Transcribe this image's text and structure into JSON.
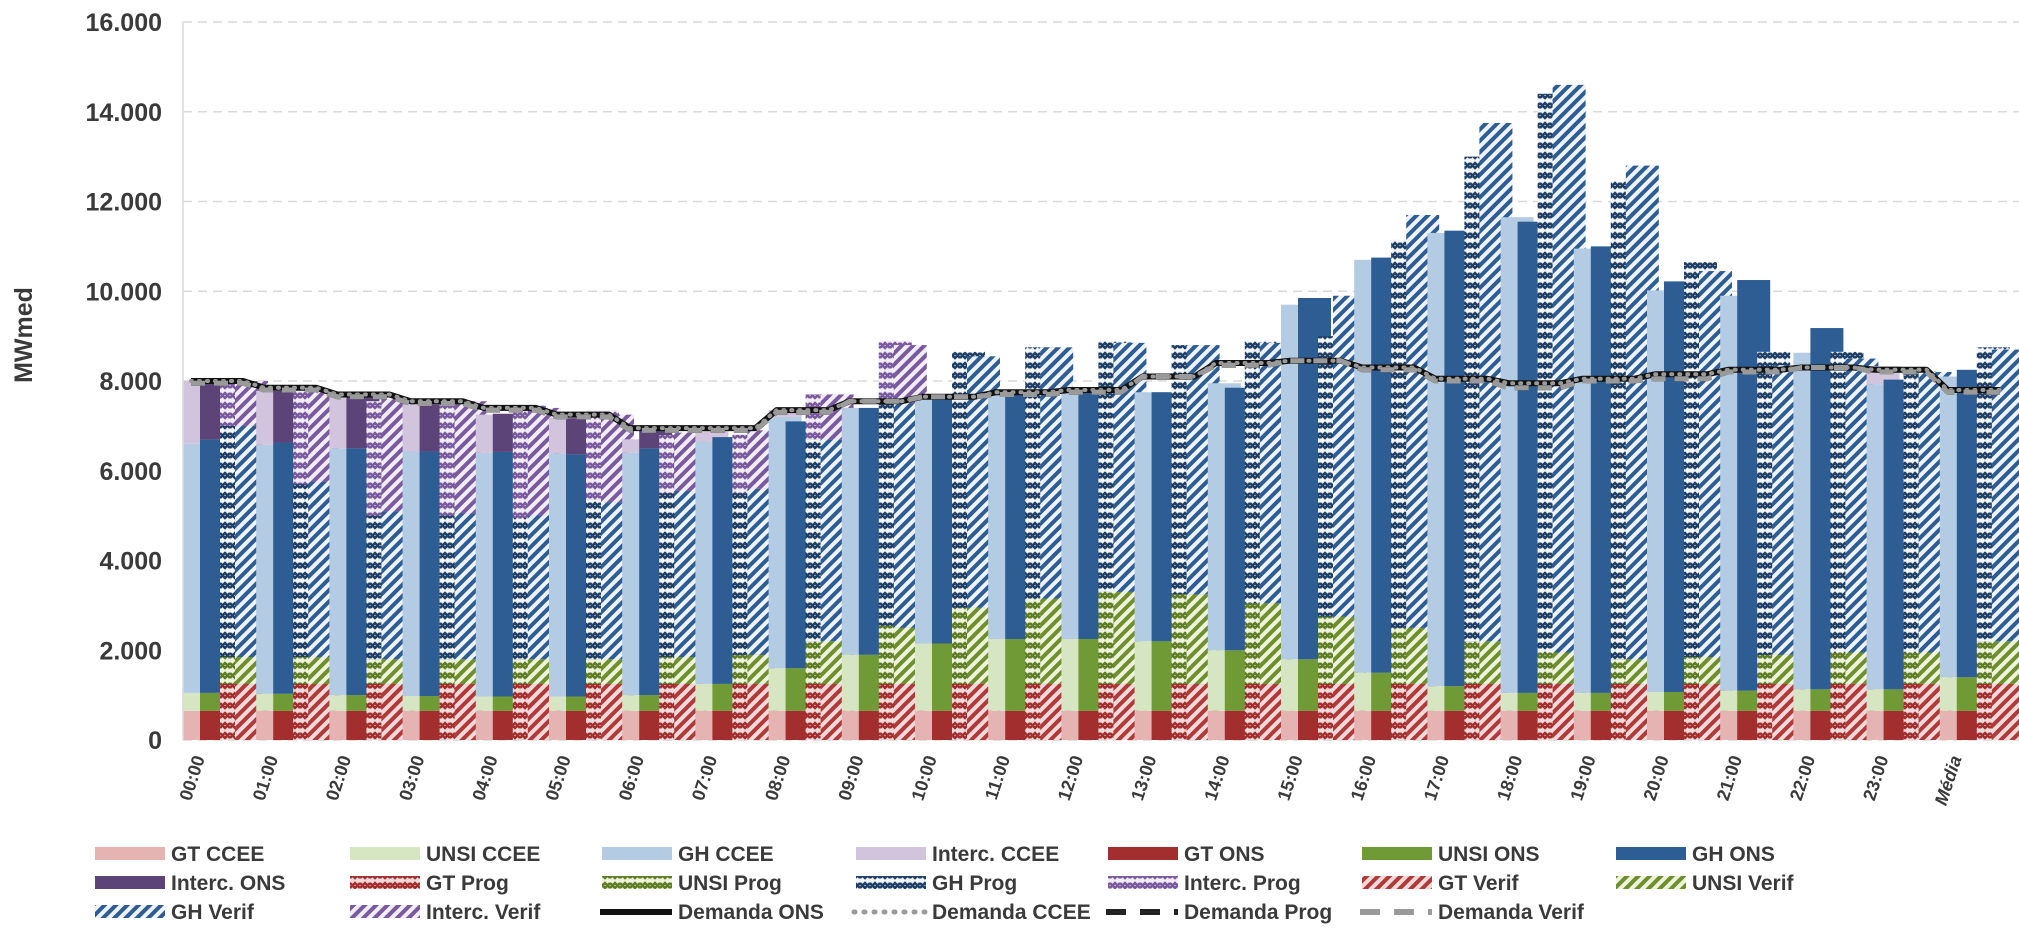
{
  "chart_data": {
    "type": "bar",
    "ylabel": "MWmed",
    "xlabel": "",
    "ylim": [
      0,
      16000
    ],
    "yticks": [
      "0",
      "2.000",
      "4.000",
      "6.000",
      "8.000",
      "10.000",
      "12.000",
      "14.000",
      "16.000"
    ],
    "grid": "horizontal dashed",
    "legend_position": "bottom",
    "categories": [
      "00:00",
      "01:00",
      "02:00",
      "03:00",
      "04:00",
      "05:00",
      "06:00",
      "07:00",
      "08:00",
      "09:00",
      "10:00",
      "11:00",
      "12:00",
      "13:00",
      "14:00",
      "15:00",
      "16:00",
      "17:00",
      "18:00",
      "19:00",
      "20:00",
      "21:00",
      "22:00",
      "23:00",
      "Média"
    ],
    "bar_groups": [
      {
        "name": "CCEE",
        "stack": [
          "GT CCEE",
          "UNSI CCEE",
          "GH CCEE",
          "Interc. CCEE"
        ]
      },
      {
        "name": "ONS",
        "stack": [
          "GT ONS",
          "UNSI ONS",
          "GH ONS",
          "Interc. ONS"
        ]
      },
      {
        "name": "Prog",
        "stack": [
          "GT Prog",
          "UNSI Prog",
          "GH Prog",
          "Interc. Prog"
        ]
      },
      {
        "name": "Verif",
        "stack": [
          "GT Verif",
          "UNSI Verif",
          "GH Verif",
          "Interc. Verif"
        ]
      }
    ],
    "series": [
      {
        "name": "GT CCEE",
        "values": [
          650,
          650,
          650,
          650,
          650,
          650,
          650,
          650,
          650,
          650,
          650,
          650,
          650,
          650,
          650,
          650,
          650,
          650,
          650,
          650,
          650,
          650,
          650,
          650,
          650
        ]
      },
      {
        "name": "UNSI CCEE",
        "values": [
          400,
          380,
          350,
          330,
          320,
          320,
          350,
          600,
          950,
          1250,
          1500,
          1600,
          1600,
          1550,
          1350,
          1150,
          850,
          550,
          400,
          400,
          420,
          450,
          480,
          480,
          750
        ]
      },
      {
        "name": "GH CCEE",
        "values": [
          5550,
          5550,
          5500,
          5450,
          5430,
          5420,
          5400,
          5400,
          5600,
          5500,
          5500,
          5450,
          5500,
          5550,
          5950,
          7900,
          9200,
          10100,
          10600,
          9900,
          8950,
          8800,
          7500,
          6800,
          6700
        ]
      },
      {
        "name": "Interc. CCEE",
        "values": [
          1400,
          1200,
          1150,
          1050,
          850,
          800,
          300,
          300,
          150,
          0,
          0,
          0,
          0,
          0,
          0,
          0,
          0,
          0,
          0,
          0,
          0,
          0,
          0,
          400,
          0
        ]
      },
      {
        "name": "GT ONS",
        "values": [
          650,
          650,
          650,
          650,
          650,
          650,
          650,
          650,
          650,
          650,
          650,
          650,
          650,
          650,
          650,
          650,
          650,
          650,
          650,
          650,
          650,
          650,
          650,
          650,
          650
        ]
      },
      {
        "name": "UNSI ONS",
        "values": [
          400,
          380,
          350,
          330,
          320,
          320,
          350,
          600,
          950,
          1250,
          1500,
          1600,
          1600,
          1550,
          1350,
          1150,
          850,
          550,
          400,
          400,
          420,
          450,
          480,
          480,
          750
        ]
      },
      {
        "name": "GH ONS",
        "values": [
          5650,
          5600,
          5500,
          5450,
          5450,
          5400,
          5500,
          5500,
          5500,
          5500,
          5500,
          5450,
          5500,
          5550,
          5850,
          8050,
          9250,
          10150,
          10500,
          9950,
          9150,
          9150,
          8050,
          6900,
          6850
        ]
      },
      {
        "name": "Interc. ONS",
        "values": [
          1300,
          1150,
          1150,
          1050,
          850,
          800,
          400,
          0,
          0,
          0,
          0,
          0,
          0,
          0,
          0,
          0,
          0,
          0,
          0,
          0,
          0,
          0,
          0,
          0,
          0
        ]
      },
      {
        "name": "GT Prog",
        "values": [
          1250,
          1250,
          1250,
          1250,
          1250,
          1250,
          1250,
          1250,
          1250,
          1250,
          1250,
          1250,
          1250,
          1250,
          1250,
          1250,
          1250,
          1250,
          1250,
          1250,
          1250,
          1250,
          1250,
          1250,
          1250
        ]
      },
      {
        "name": "UNSI Prog",
        "values": [
          600,
          600,
          550,
          550,
          550,
          550,
          600,
          650,
          950,
          1300,
          1700,
          1900,
          2050,
          2000,
          1800,
          1500,
          1250,
          950,
          700,
          550,
          600,
          650,
          700,
          700,
          950
        ]
      },
      {
        "name": "GH Prog",
        "values": [
          5150,
          3850,
          3200,
          3200,
          3150,
          3550,
          3650,
          3600,
          4500,
          5050,
          5700,
          5600,
          5600,
          5550,
          5850,
          6250,
          8650,
          10800,
          12450,
          10650,
          8800,
          6750,
          6700,
          6300,
          6550
        ]
      },
      {
        "name": "Interc. Prog",
        "values": [
          1000,
          2100,
          2550,
          2550,
          2500,
          2000,
          1300,
          1300,
          1000,
          1300,
          0,
          0,
          0,
          0,
          0,
          0,
          0,
          0,
          0,
          0,
          0,
          0,
          0,
          0,
          0
        ]
      },
      {
        "name": "GT Verif",
        "values": [
          1250,
          1250,
          1250,
          1250,
          1250,
          1250,
          1250,
          1250,
          1250,
          1250,
          1250,
          1250,
          1250,
          1250,
          1250,
          1250,
          1250,
          1250,
          1250,
          1250,
          1250,
          1250,
          1250,
          1250,
          1250
        ]
      },
      {
        "name": "UNSI Verif",
        "values": [
          600,
          600,
          550,
          550,
          550,
          550,
          600,
          650,
          950,
          1250,
          1700,
          1900,
          2050,
          2000,
          1800,
          1500,
          1250,
          950,
          700,
          550,
          600,
          650,
          700,
          700,
          950
        ]
      },
      {
        "name": "GH Verif",
        "values": [
          5150,
          3900,
          3300,
          3250,
          3200,
          3500,
          3700,
          3700,
          4500,
          5000,
          5600,
          5600,
          5550,
          5550,
          5800,
          7150,
          9200,
          11550,
          12650,
          11000,
          8600,
          6450,
          6550,
          6250,
          6500
        ]
      },
      {
        "name": "Interc. Verif",
        "values": [
          1000,
          2000,
          2500,
          2500,
          2400,
          1950,
          1300,
          1300,
          1000,
          1300,
          0,
          0,
          0,
          0,
          0,
          0,
          0,
          0,
          0,
          0,
          0,
          0,
          0,
          0,
          0
        ]
      }
    ],
    "lines": [
      {
        "name": "Demanda ONS",
        "style": "solid",
        "values": [
          8000,
          7850,
          7700,
          7550,
          7400,
          7250,
          6950,
          6950,
          7350,
          7550,
          7650,
          7750,
          7800,
          8100,
          8400,
          8450,
          8300,
          8050,
          7950,
          8050,
          8150,
          8250,
          8300,
          8250,
          7800
        ]
      },
      {
        "name": "Demanda CCEE",
        "style": "dotted",
        "values": [
          8000,
          7850,
          7700,
          7550,
          7400,
          7250,
          6950,
          6950,
          7350,
          7550,
          7650,
          7750,
          7800,
          8100,
          8400,
          8450,
          8300,
          8050,
          7950,
          8050,
          8150,
          8250,
          8300,
          8250,
          7800
        ]
      },
      {
        "name": "Demanda Prog",
        "style": "dash",
        "values": [
          7950,
          7800,
          7650,
          7500,
          7350,
          7200,
          6900,
          6900,
          7300,
          7550,
          7650,
          7700,
          7750,
          8100,
          8350,
          8450,
          8250,
          8000,
          7850,
          8000,
          8050,
          8200,
          8300,
          8200,
          7750
        ]
      },
      {
        "name": "Demanda Verif",
        "style": "dash-grey",
        "values": [
          7950,
          7800,
          7650,
          7500,
          7350,
          7200,
          6900,
          6900,
          7300,
          7550,
          7650,
          7700,
          7750,
          8100,
          8350,
          8450,
          8250,
          8000,
          7850,
          8000,
          8050,
          8200,
          8300,
          8200,
          7750
        ]
      }
    ],
    "legend": [
      {
        "label": "GT CCEE",
        "swatch": "bar",
        "color": "#e6b3b3",
        "pattern": "solid"
      },
      {
        "label": "UNSI CCEE",
        "swatch": "bar",
        "color": "#d6e6c3",
        "pattern": "solid"
      },
      {
        "label": "GH CCEE",
        "swatch": "bar",
        "color": "#b4cbe4",
        "pattern": "solid"
      },
      {
        "label": "Interc. CCEE",
        "swatch": "bar",
        "color": "#d2c4dd",
        "pattern": "solid"
      },
      {
        "label": "GT ONS",
        "swatch": "bar",
        "color": "#a32e2e",
        "pattern": "solid"
      },
      {
        "label": "UNSI ONS",
        "swatch": "bar",
        "color": "#6f9a36",
        "pattern": "solid"
      },
      {
        "label": "GH ONS",
        "swatch": "bar",
        "color": "#2e5d94",
        "pattern": "solid"
      },
      {
        "label": "Interc. ONS",
        "swatch": "bar",
        "color": "#5c4378",
        "pattern": "solid"
      },
      {
        "label": "GT Prog",
        "swatch": "bar",
        "color": "#b03a3a",
        "pattern": "hatch"
      },
      {
        "label": "UNSI Prog",
        "swatch": "bar",
        "color": "#6f8f2e",
        "pattern": "hatch"
      },
      {
        "label": "GH Prog",
        "swatch": "bar",
        "color": "#1f3f66",
        "pattern": "hatch"
      },
      {
        "label": "Interc. Prog",
        "swatch": "bar",
        "color": "#7a5a9e",
        "pattern": "hatch"
      },
      {
        "label": "GT Verif",
        "swatch": "bar",
        "color": "#b03a3a",
        "pattern": "diag"
      },
      {
        "label": "UNSI Verif",
        "swatch": "bar",
        "color": "#6f8f2e",
        "pattern": "diag"
      },
      {
        "label": "GH Verif",
        "swatch": "bar",
        "color": "#2e5d94",
        "pattern": "diag"
      },
      {
        "label": "Interc. Verif",
        "swatch": "bar",
        "color": "#7a5a9e",
        "pattern": "diag"
      },
      {
        "label": "Demanda ONS",
        "swatch": "line",
        "color": "#111111",
        "pattern": "solid"
      },
      {
        "label": "Demanda CCEE",
        "swatch": "line",
        "color": "#9a9a9a",
        "pattern": "dotted"
      },
      {
        "label": "Demanda Prog",
        "swatch": "line",
        "color": "#222222",
        "pattern": "dash"
      },
      {
        "label": "Demanda Verif",
        "swatch": "line",
        "color": "#9a9a9a",
        "pattern": "dash"
      }
    ]
  }
}
